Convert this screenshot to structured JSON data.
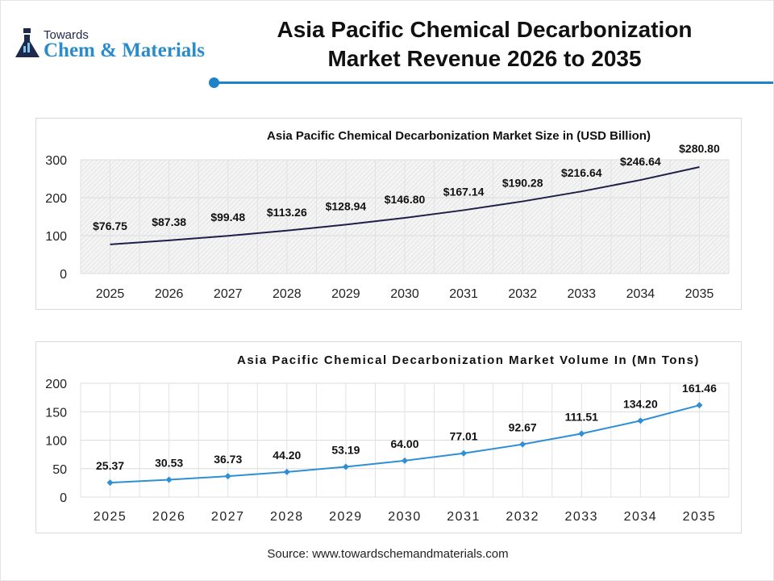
{
  "header": {
    "logo_top": "Towards",
    "logo_bottom": "Chem & Materials",
    "title_line1": "Asia Pacific Chemical Decarbonization",
    "title_line2": "Market Revenue 2026 to 2035"
  },
  "source": "Source: www.towardschemandmaterials.com",
  "colors": {
    "accent": "#1e82c8",
    "revenue_line": "#1f1f4a",
    "volume_line": "#2e8fd6"
  },
  "chart_data": [
    {
      "type": "line",
      "title": "Asia Pacific Chemical Decarbonization Market Size in (USD Billion)",
      "categories": [
        "2025",
        "2026",
        "2027",
        "2028",
        "2029",
        "2030",
        "2031",
        "2032",
        "2033",
        "2034",
        "2035"
      ],
      "values": [
        76.75,
        87.38,
        99.48,
        113.26,
        128.94,
        146.8,
        167.14,
        190.28,
        216.64,
        246.64,
        280.8
      ],
      "data_labels": [
        "$76.75",
        "$87.38",
        "$99.48",
        "$113.26",
        "$128.94",
        "$146.80",
        "$167.14",
        "$190.28",
        "$216.64",
        "$246.64",
        "$280.80"
      ],
      "yticks": [
        0,
        100,
        200,
        300
      ],
      "ylim": [
        0,
        300
      ],
      "grid": true,
      "markers": false
    },
    {
      "type": "line",
      "title": "Asia Pacific Chemical Decarbonization Market Volume In (Mn Tons)",
      "categories": [
        "2025",
        "2026",
        "2027",
        "2028",
        "2029",
        "2030",
        "2031",
        "2032",
        "2033",
        "2034",
        "2035"
      ],
      "values": [
        25.37,
        30.53,
        36.73,
        44.2,
        53.19,
        64.0,
        77.01,
        92.67,
        111.51,
        134.2,
        161.46
      ],
      "data_labels": [
        "25.37",
        "30.53",
        "36.73",
        "44.20",
        "53.19",
        "64.00",
        "77.01",
        "92.67",
        "111.51",
        "134.20",
        "161.46"
      ],
      "yticks": [
        0,
        50,
        100,
        150,
        200
      ],
      "ylim": [
        0,
        200
      ],
      "grid": true,
      "markers": true
    }
  ]
}
